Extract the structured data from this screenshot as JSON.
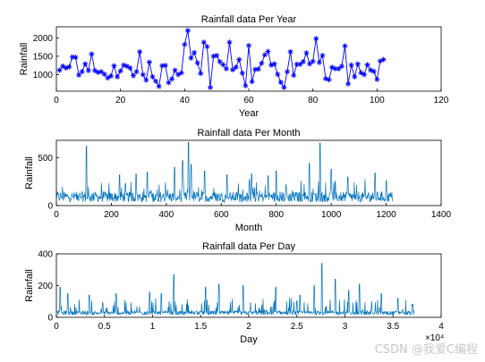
{
  "watermark": "CSDN @我爱C编程",
  "colors": {
    "series": "#0072BD",
    "marker": "#0000FF",
    "axis": "#000000",
    "background": "#FFFFFF"
  },
  "chart_data": [
    {
      "type": "line",
      "marker": "asterisk",
      "title": "Rainfall data Per Year",
      "xlabel": "Year",
      "ylabel": "Rainfall",
      "xlim": [
        0,
        120
      ],
      "ylim": [
        550,
        2300
      ],
      "xticks": [
        "0",
        "20",
        "40",
        "60",
        "80",
        "100",
        "120"
      ],
      "yticks": [
        "1000",
        "1500",
        "2000"
      ],
      "tick_values": [
        1000,
        1500,
        2000
      ],
      "x": [
        1,
        2,
        3,
        4,
        5,
        6,
        7,
        8,
        9,
        10,
        11,
        12,
        13,
        14,
        15,
        16,
        17,
        18,
        19,
        20,
        21,
        22,
        23,
        24,
        25,
        26,
        27,
        28,
        29,
        30,
        31,
        32,
        33,
        34,
        35,
        36,
        37,
        38,
        39,
        40,
        41,
        42,
        43,
        44,
        45,
        46,
        47,
        48,
        49,
        50,
        51,
        52,
        53,
        54,
        55,
        56,
        57,
        58,
        59,
        60,
        61,
        62,
        63,
        64,
        65,
        66,
        67,
        68,
        69,
        70,
        71,
        72,
        73,
        74,
        75,
        76,
        77,
        78,
        79,
        80,
        81,
        82,
        83,
        84,
        85,
        86,
        87,
        88,
        89,
        90,
        91,
        92,
        93,
        94,
        95,
        96,
        97,
        98,
        99,
        100,
        101,
        102
      ],
      "values": [
        1120,
        1230,
        1180,
        1210,
        1480,
        1470,
        990,
        1080,
        1290,
        1110,
        1560,
        1110,
        1060,
        1080,
        1010,
        910,
        960,
        1240,
        940,
        1100,
        1260,
        1230,
        1180,
        970,
        1080,
        1620,
        1000,
        850,
        1340,
        940,
        820,
        680,
        1240,
        1250,
        780,
        880,
        1120,
        1000,
        1050,
        1820,
        2200,
        1450,
        1600,
        1320,
        1030,
        1880,
        1760,
        650,
        1500,
        1520,
        1350,
        1270,
        1160,
        1880,
        1130,
        1200,
        1410,
        1040,
        700,
        1790,
        810,
        1140,
        1150,
        1310,
        1540,
        1630,
        1260,
        1290,
        1010,
        790,
        650,
        1080,
        1620,
        980,
        1280,
        1280,
        1350,
        1590,
        1290,
        1360,
        1980,
        1330,
        1520,
        890,
        860,
        1200,
        1160,
        1160,
        1230,
        1780,
        750,
        1260,
        940,
        1290,
        1050,
        1000,
        1270,
        1120,
        1090,
        870,
        1370,
        1410
      ]
    },
    {
      "type": "line",
      "title": "Rainfall data Per Month",
      "xlabel": "Month",
      "ylabel": "Rainfall",
      "xlim": [
        0,
        1400
      ],
      "ylim": [
        0,
        680
      ],
      "n": 1224,
      "baseline": 90,
      "peaks": [
        [
          110,
          620
        ],
        [
          230,
          320
        ],
        [
          290,
          330
        ],
        [
          330,
          350
        ],
        [
          430,
          400
        ],
        [
          460,
          470
        ],
        [
          480,
          660
        ],
        [
          490,
          430
        ],
        [
          540,
          360
        ],
        [
          620,
          320
        ],
        [
          710,
          330
        ],
        [
          770,
          310
        ],
        [
          800,
          360
        ],
        [
          920,
          440
        ],
        [
          960,
          650
        ],
        [
          1000,
          380
        ],
        [
          1060,
          300
        ],
        [
          1160,
          340
        ],
        [
          1200,
          260
        ]
      ],
      "xticks": [
        "0",
        "200",
        "400",
        "600",
        "800",
        "1000",
        "1200",
        "1400"
      ],
      "yticks": [
        "0",
        "500"
      ],
      "tick_values": [
        0,
        500
      ]
    },
    {
      "type": "line",
      "title": "Rainfall data Per Day",
      "xlabel": "Day",
      "ylabel": "Rainfall",
      "xlim": [
        0,
        40000
      ],
      "ylim": [
        0,
        400
      ],
      "n": 37200,
      "baseline": 15,
      "peaks": [
        [
          400,
          190
        ],
        [
          1200,
          150
        ],
        [
          3400,
          140
        ],
        [
          6200,
          150
        ],
        [
          9700,
          160
        ],
        [
          10900,
          150
        ],
        [
          12200,
          270
        ],
        [
          15500,
          190
        ],
        [
          16900,
          210
        ],
        [
          19400,
          200
        ],
        [
          22800,
          190
        ],
        [
          25300,
          140
        ],
        [
          26800,
          200
        ],
        [
          27600,
          340
        ],
        [
          29000,
          240
        ],
        [
          30400,
          170
        ],
        [
          31500,
          210
        ],
        [
          33800,
          150
        ],
        [
          35500,
          120
        ]
      ],
      "xticks": [
        "0",
        "0.5",
        "1",
        "1.5",
        "2",
        "2.5",
        "3",
        "3.5",
        "4"
      ],
      "xtick_multiplier": "×10⁴",
      "yticks": [
        "0",
        "200",
        "400"
      ],
      "tick_values": [
        0,
        200,
        400
      ]
    }
  ]
}
